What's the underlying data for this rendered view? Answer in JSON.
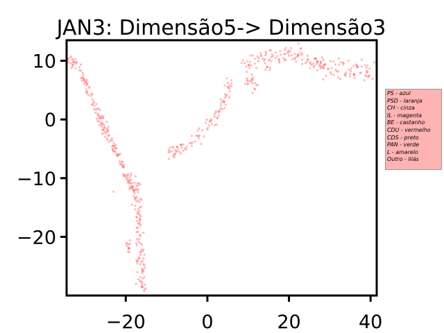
{
  "chart_data": {
    "type": "scatter",
    "title": "JAN3: Dimensão5-> Dimensão3",
    "xlabel": "",
    "ylabel": "",
    "xlim": [
      -34.5,
      41.5
    ],
    "ylim": [
      -30,
      13.5
    ],
    "x_ticks": [
      -20,
      0,
      20,
      40
    ],
    "y_ticks": [
      -20,
      -10,
      0,
      10
    ],
    "x_tick_labels": [
      "−20",
      "0",
      "20",
      "40"
    ],
    "y_tick_labels": [
      "−20",
      "−10",
      "0",
      "10"
    ],
    "grid": false,
    "point_color": "#ff6b6b",
    "clusters": [
      {
        "path": [
          [
            -34,
            10.3
          ],
          [
            -31,
            8.5
          ],
          [
            -29.5,
            5.5
          ],
          [
            -27,
            1.5
          ],
          [
            -24.5,
            -2.5
          ],
          [
            -22,
            -6
          ],
          [
            -20,
            -9.5
          ],
          [
            -18,
            -12
          ]
        ],
        "n": 170,
        "spread": 0.7
      },
      {
        "path": [
          [
            -18,
            -10
          ],
          [
            -17,
            -16
          ],
          [
            -16.3,
            -22
          ],
          [
            -15.8,
            -30
          ]
        ],
        "n": 110,
        "spread": 0.9
      },
      {
        "path": [
          [
            -19.5,
            -20
          ],
          [
            -19,
            -23
          ]
        ],
        "n": 12,
        "spread": 0.4
      },
      {
        "path": [
          [
            -9.5,
            -6.2
          ],
          [
            -4,
            -4
          ],
          [
            0,
            -1.5
          ],
          [
            2,
            0.5
          ],
          [
            4,
            3
          ],
          [
            6,
            6.5
          ]
        ],
        "n": 95,
        "spread": 1.0
      },
      {
        "path": [
          [
            9,
            9
          ],
          [
            12,
            10
          ],
          [
            16,
            10.5
          ],
          [
            20,
            11
          ],
          [
            24,
            10.5
          ],
          [
            28,
            9
          ],
          [
            32,
            8.5
          ],
          [
            36,
            8
          ],
          [
            41,
            8.5
          ]
        ],
        "n": 190,
        "spread": 1.5
      },
      {
        "path": [
          [
            9.5,
            6
          ],
          [
            11,
            7
          ],
          [
            12,
            5
          ]
        ],
        "n": 20,
        "spread": 0.8
      }
    ],
    "outliers": [
      [
        -23,
        -12.3
      ],
      [
        -34,
        9.7
      ],
      [
        -17.5,
        -28
      ]
    ]
  },
  "legend": {
    "entries": [
      "PS - azul",
      "PSD - laranja",
      "CH - cinza",
      "IL - magenta",
      "BE - castanho",
      "CDU - vermelho",
      "CDS - preto",
      "PAN - verde",
      "L - amarelo",
      "Outro - lilás"
    ],
    "background": "#ffb3b3",
    "border_color": "#999999",
    "placement": "right-outside"
  }
}
